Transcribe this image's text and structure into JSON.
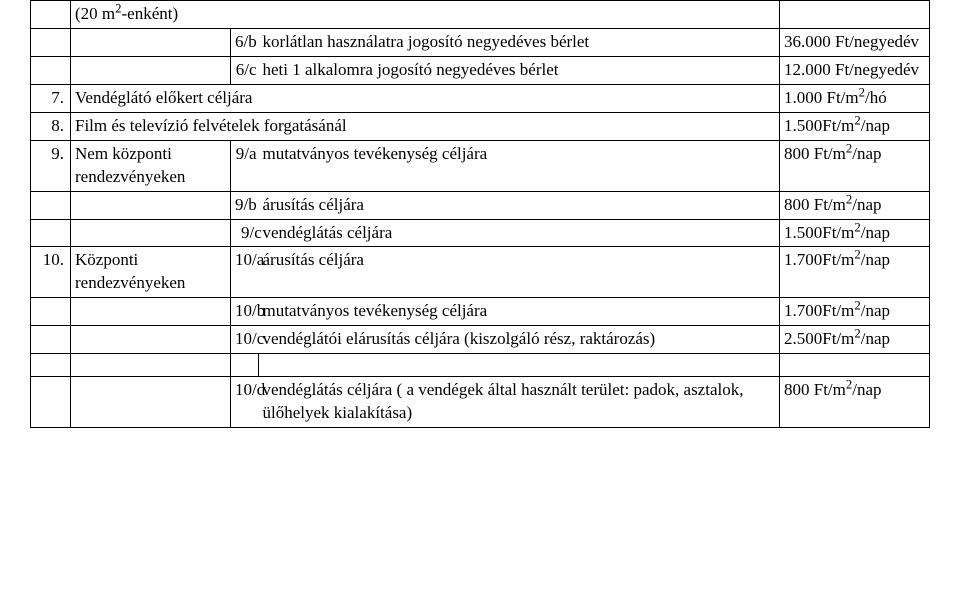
{
  "rows": [
    {
      "num": "",
      "cat": "",
      "sub": "",
      "desc": "(20 m²-enként)",
      "price": ""
    },
    {
      "num": "",
      "cat": "",
      "sub": "6/b",
      "desc": "korlátlan használatra jogosító negyedéves bérlet",
      "price": "36.000 Ft/negyedév"
    },
    {
      "num": "",
      "cat": "",
      "sub": "6/c",
      "desc": "heti 1 alkalomra jogosító negyedéves bérlet",
      "price": "12.000 Ft/negyedév"
    },
    {
      "num": "7.",
      "cat": "Vendéglátó előkert céljára",
      "sub": "",
      "desc": "",
      "price": "1.000 Ft/m²/hó",
      "merge_catdesc": true
    },
    {
      "num": "8.",
      "cat": "Film és televízió felvételek forgatásánál",
      "sub": "",
      "desc": "",
      "price": "1.500Ft/m²/nap",
      "merge_catdesc": true
    },
    {
      "num": "9.",
      "cat": "Nem központi rendezvényeken",
      "sub": "9/a",
      "desc": "mutatványos tevékenység céljára",
      "price": "800 Ft/m²/nap"
    },
    {
      "num": "",
      "cat": "",
      "sub": "9/b",
      "desc": "árusítás céljára",
      "price": "800 Ft/m²/nap"
    },
    {
      "num": "",
      "cat": "",
      "sub": "9/c",
      "desc": "vendéglátás céljára",
      "price": "1.500Ft/m²/nap",
      "indent_sub": true
    },
    {
      "num": "10.",
      "cat": "Központi rendezvényeken",
      "sub": "10/a",
      "desc": "árusítás céljára",
      "price": "1.700Ft/m²/nap"
    },
    {
      "num": "",
      "cat": "",
      "sub": "10/b",
      "desc": "mutatványos tevékenység céljára",
      "price": "1.700Ft/m²/nap"
    },
    {
      "num": "",
      "cat": "",
      "sub": "10/c",
      "desc": "vendéglátói elárusítás céljára (kiszolgáló rész, raktározás)",
      "price": "2.500Ft/m²/nap"
    },
    {
      "empty": true
    },
    {
      "num": "",
      "cat": "",
      "sub": "10/d",
      "desc": "vendéglátás céljára ( a vendégek által használt terület: padok, asztalok, ülőhelyek kialakítása)",
      "price": "800 Ft/m²/nap"
    }
  ]
}
